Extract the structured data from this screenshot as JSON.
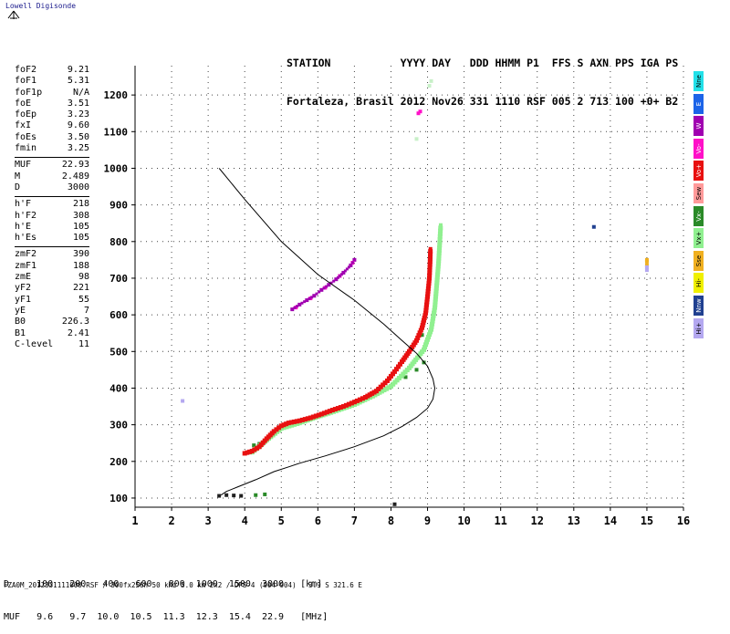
{
  "brand": "Lowell Digisonde",
  "header": {
    "line1": "STATION           YYYY DAY   DDD HHMM P1  FFS S AXN PPS IGA PS",
    "line2": "Fortaleza, Brasil 2012 Nov26 331 1110 RSF 005 2 713 100 +0+ B2"
  },
  "params_groups": [
    [
      {
        "k": "foF2",
        "v": "9.21"
      },
      {
        "k": "foF1",
        "v": "5.31"
      },
      {
        "k": "foF1p",
        "v": "N/A"
      },
      {
        "k": "foE",
        "v": "3.51"
      },
      {
        "k": "foEp",
        "v": "3.23"
      },
      {
        "k": "fxI",
        "v": "9.60"
      },
      {
        "k": "foEs",
        "v": "3.50"
      },
      {
        "k": "fmin",
        "v": "3.25"
      }
    ],
    [
      {
        "k": "MUF",
        "v": "22.93"
      },
      {
        "k": "M",
        "v": "2.489"
      },
      {
        "k": "D",
        "v": "3000"
      }
    ],
    [
      {
        "k": "h'F",
        "v": "218"
      },
      {
        "k": "h'F2",
        "v": "308"
      },
      {
        "k": "h'E",
        "v": "105"
      },
      {
        "k": "h'Es",
        "v": "105"
      }
    ],
    [
      {
        "k": "zmF2",
        "v": "390"
      },
      {
        "k": "zmF1",
        "v": "188"
      },
      {
        "k": "zmE",
        "v": "98"
      },
      {
        "k": "yF2",
        "v": "221"
      },
      {
        "k": "yF1",
        "v": "55"
      },
      {
        "k": "yE",
        "v": "7"
      },
      {
        "k": "B0",
        "v": "226.3"
      },
      {
        "k": "B1",
        "v": "2.41"
      },
      {
        "k": "C-level",
        "v": "11"
      }
    ]
  ],
  "legend": [
    {
      "label": "Nne",
      "color": "#22e0e8"
    },
    {
      "label": "E",
      "color": "#1c64e8"
    },
    {
      "label": "W",
      "color": "#a000b0"
    },
    {
      "label": "Vo-",
      "color": "#ff10c8"
    },
    {
      "label": "Vo+",
      "color": "#e81010"
    },
    {
      "label": "Sew",
      "color": "#ff9a9a"
    },
    {
      "label": "Vx-",
      "color": "#2a8a28"
    },
    {
      "label": "Vx+",
      "color": "#90f090"
    },
    {
      "label": "Sse",
      "color": "#f0b020"
    },
    {
      "label": "Hi-",
      "color": "#f0f000"
    },
    {
      "label": "Nnw",
      "color": "#204090"
    },
    {
      "label": "Hi+",
      "color": "#b4a8f0"
    }
  ],
  "footer": {
    "row1": "D     100   200   400   600   800  1000  1500  3000   [km]",
    "row2": "MUF   9.6   9.7  10.0  10.5  11.3  12.3  15.4  22.9   [MHz]",
    "meta": "FZA0M_2012331111000.RSF / 300fx256h 50 kHz 5.0 km 2x2 / DPS-4 (904-904)   3.9 S 321.6 E"
  },
  "chart_data": {
    "type": "scatter",
    "title": "",
    "xlabel": "",
    "ylabel": "",
    "xlim": [
      1,
      16
    ],
    "ylim": [
      75,
      1280
    ],
    "x_ticks": [
      1,
      2,
      3,
      4,
      5,
      6,
      7,
      8,
      9,
      10,
      11,
      12,
      13,
      14,
      15,
      16
    ],
    "y_ticks": [
      100,
      200,
      300,
      400,
      500,
      600,
      700,
      800,
      900,
      1000,
      1100,
      1200
    ],
    "grid": true,
    "legend_position": "right",
    "series": [
      {
        "color": "#e81010",
        "points": [
          [
            4.0,
            222
          ],
          [
            4.2,
            228
          ],
          [
            4.4,
            240
          ],
          [
            4.6,
            262
          ],
          [
            4.8,
            282
          ],
          [
            5.0,
            297
          ],
          [
            5.2,
            305
          ],
          [
            5.5,
            311
          ],
          [
            5.8,
            319
          ],
          [
            6.1,
            329
          ],
          [
            6.4,
            340
          ],
          [
            6.7,
            350
          ],
          [
            7.0,
            362
          ],
          [
            7.3,
            375
          ],
          [
            7.6,
            392
          ],
          [
            7.9,
            420
          ],
          [
            8.1,
            445
          ],
          [
            8.3,
            472
          ],
          [
            8.5,
            500
          ],
          [
            8.7,
            530
          ],
          [
            8.85,
            565
          ],
          [
            8.95,
            605
          ],
          [
            9.0,
            650
          ],
          [
            9.05,
            700
          ],
          [
            9.07,
            745
          ],
          [
            9.08,
            780
          ]
        ]
      },
      {
        "color": "#90f090",
        "points": [
          [
            4.2,
            225
          ],
          [
            4.6,
            258
          ],
          [
            5.0,
            290
          ],
          [
            5.5,
            305
          ],
          [
            6.0,
            322
          ],
          [
            6.5,
            338
          ],
          [
            7.0,
            355
          ],
          [
            7.5,
            378
          ],
          [
            8.0,
            405
          ],
          [
            8.5,
            455
          ],
          [
            8.9,
            505
          ],
          [
            9.1,
            560
          ],
          [
            9.2,
            620
          ],
          [
            9.25,
            680
          ],
          [
            9.3,
            740
          ],
          [
            9.33,
            790
          ],
          [
            9.36,
            845
          ]
        ]
      },
      {
        "color": "#2a8a28",
        "points": [
          [
            4.25,
            244
          ],
          [
            4.4,
            248
          ],
          [
            4.3,
            108
          ],
          [
            4.55,
            110
          ],
          [
            8.7,
            450
          ],
          [
            8.9,
            470
          ],
          [
            8.4,
            430
          ],
          [
            8.85,
            545
          ]
        ]
      },
      {
        "color": "#a000b0",
        "points": [
          [
            5.3,
            615
          ],
          [
            5.5,
            628
          ],
          [
            5.7,
            640
          ],
          [
            5.9,
            652
          ],
          [
            6.1,
            668
          ],
          [
            6.3,
            682
          ],
          [
            6.5,
            697
          ],
          [
            6.7,
            715
          ],
          [
            6.9,
            735
          ],
          [
            7.0,
            750
          ]
        ]
      },
      {
        "color": "#ff10c8",
        "points": [
          [
            5.4,
            620
          ],
          [
            5.8,
            645
          ],
          [
            6.2,
            674
          ],
          [
            6.6,
            706
          ],
          [
            6.95,
            742
          ],
          [
            8.75,
            1150
          ],
          [
            8.8,
            1155
          ]
        ]
      },
      {
        "color": "#f0b020",
        "points": [
          [
            15.0,
            750
          ],
          [
            15.0,
            745
          ],
          [
            15.0,
            735
          ]
        ]
      },
      {
        "color": "#b4a8f0",
        "points": [
          [
            15.0,
            730
          ],
          [
            15.0,
            722
          ],
          [
            2.3,
            365
          ]
        ]
      },
      {
        "color": "#204090",
        "points": [
          [
            13.55,
            840
          ]
        ]
      },
      {
        "color": "#c8f0c8",
        "points": [
          [
            8.7,
            1080
          ],
          [
            9.05,
            1225
          ],
          [
            9.1,
            1238
          ]
        ]
      },
      {
        "color": "#202020",
        "points": [
          [
            3.3,
            106
          ],
          [
            3.5,
            108
          ],
          [
            3.7,
            107
          ],
          [
            3.9,
            106
          ],
          [
            8.1,
            83
          ]
        ]
      }
    ],
    "profile": {
      "color": "#000000",
      "points": [
        [
          3.3,
          1000
        ],
        [
          4.0,
          915
        ],
        [
          5.0,
          800
        ],
        [
          6.0,
          710
        ],
        [
          7.0,
          640
        ],
        [
          7.8,
          575
        ],
        [
          8.3,
          530
        ],
        [
          8.7,
          495
        ],
        [
          9.0,
          460
        ],
        [
          9.15,
          425
        ],
        [
          9.2,
          400
        ],
        [
          9.15,
          370
        ],
        [
          9.0,
          345
        ],
        [
          8.7,
          320
        ],
        [
          8.3,
          295
        ],
        [
          7.8,
          270
        ],
        [
          7.0,
          240
        ],
        [
          6.2,
          215
        ],
        [
          5.5,
          195
        ],
        [
          5.2,
          185
        ],
        [
          4.8,
          172
        ],
        [
          4.3,
          150
        ],
        [
          3.8,
          130
        ],
        [
          3.5,
          118
        ],
        [
          3.35,
          108
        ]
      ]
    }
  }
}
